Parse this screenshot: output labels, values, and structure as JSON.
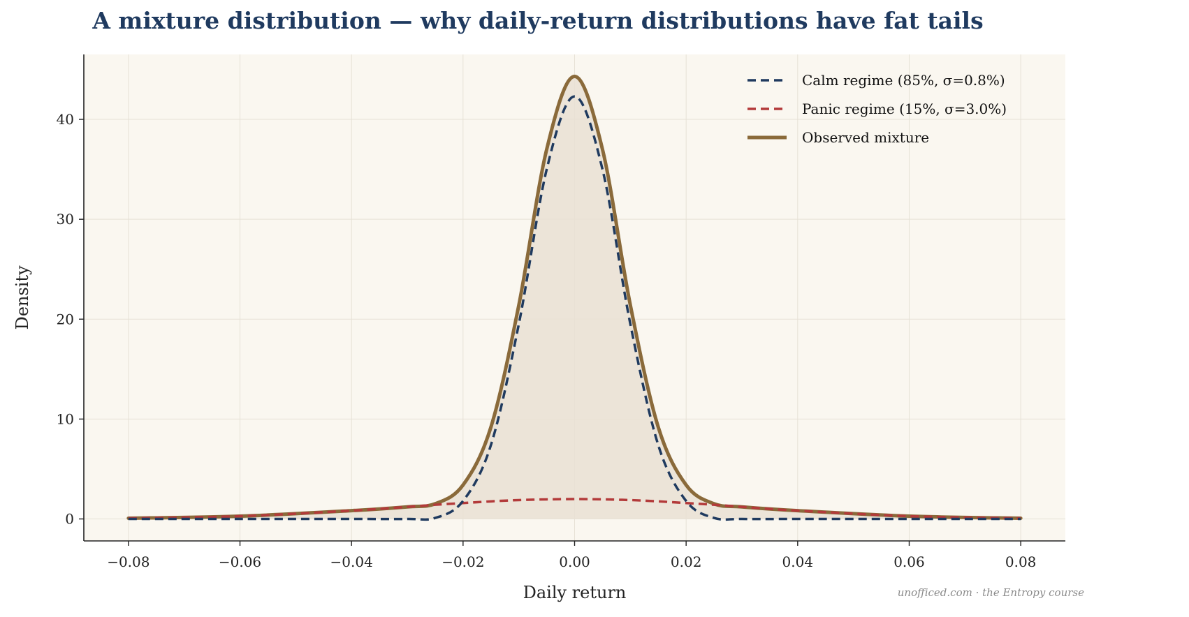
{
  "title": "A mixture distribution — why daily-return distributions have fat tails",
  "footer": "unofficed.com · the Entropy course",
  "colors": {
    "background": "#faf7f0",
    "grid": "#e6e1d6",
    "calm": "#1f3a5f",
    "panic": "#b33a3a",
    "mixture": "#8a6a3a",
    "fill": "#e9e1d4",
    "axis": "#222222"
  },
  "chart_data": {
    "type": "line",
    "xlabel": "Daily return",
    "ylabel": "Density",
    "xlim": [
      -0.088,
      0.088
    ],
    "ylim": [
      -2.2,
      46.5
    ],
    "xticks": [
      -0.08,
      -0.06,
      -0.04,
      -0.02,
      0.0,
      0.02,
      0.04,
      0.06,
      0.08
    ],
    "xtick_labels": [
      "−0.08",
      "−0.06",
      "−0.04",
      "−0.02",
      "0.00",
      "0.02",
      "0.04",
      "0.06",
      "0.08"
    ],
    "yticks": [
      0,
      10,
      20,
      30,
      40
    ],
    "ytick_labels": [
      "0",
      "10",
      "20",
      "30",
      "40"
    ],
    "grid": true,
    "legend_position": "top-right",
    "x": [
      -0.08,
      -0.06,
      -0.04,
      -0.03,
      -0.025,
      -0.02,
      -0.015,
      -0.01,
      -0.005,
      0.0,
      0.005,
      0.01,
      0.015,
      0.02,
      0.025,
      0.03,
      0.04,
      0.06,
      0.08
    ],
    "series": [
      {
        "name": "Calm regime (85%, σ=0.8%)",
        "style": "dashed",
        "values": [
          0.0,
          0.0,
          0.0,
          0.0,
          0.1,
          1.8,
          7.4,
          19.5,
          35.0,
          42.3,
          35.0,
          19.5,
          7.4,
          1.8,
          0.1,
          0.0,
          0.0,
          0.0,
          0.0
        ]
      },
      {
        "name": "Panic regime (15%, σ=3.0%)",
        "style": "dashed",
        "values": [
          0.07,
          0.28,
          0.83,
          1.21,
          1.42,
          1.59,
          1.76,
          1.89,
          1.96,
          1.99,
          1.96,
          1.89,
          1.76,
          1.59,
          1.42,
          1.21,
          0.83,
          0.28,
          0.07
        ]
      },
      {
        "name": "Observed mixture",
        "style": "solid",
        "fill": true,
        "values": [
          0.07,
          0.28,
          0.83,
          1.21,
          1.52,
          3.4,
          9.2,
          21.4,
          37.0,
          44.3,
          37.0,
          21.4,
          9.2,
          3.4,
          1.52,
          1.21,
          0.83,
          0.28,
          0.07
        ]
      }
    ]
  }
}
